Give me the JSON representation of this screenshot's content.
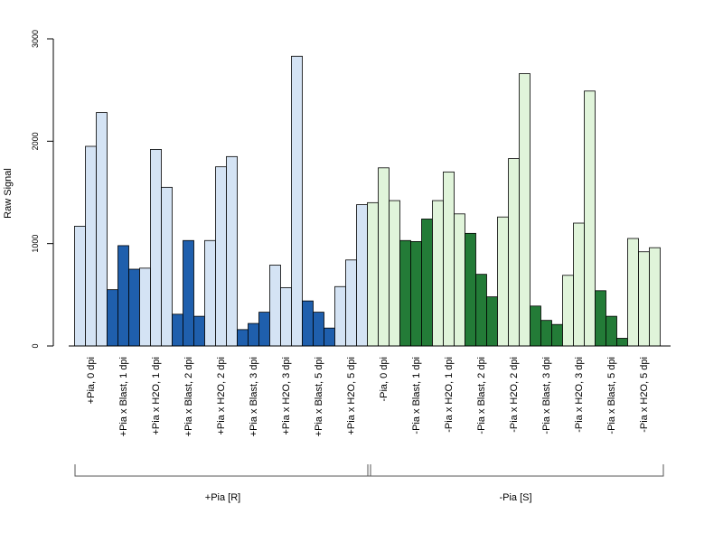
{
  "chart_data": {
    "type": "bar",
    "ylabel": "Raw Signal",
    "xlabel": "",
    "title": "",
    "ylim": [
      0,
      3000
    ],
    "yticks": [
      0,
      1000,
      2000,
      3000
    ],
    "ytick_labels": [
      "0",
      "1000",
      "2000",
      "3000"
    ],
    "grid": false,
    "categories": [
      "+Pia, 0 dpi",
      "+Pia x Blast, 1 dpi",
      "+Pia x H2O, 1 dpi",
      "+Pia x Blast, 2 dpi",
      "+Pia x H2O, 2 dpi",
      "+Pia x Blast, 3 dpi",
      "+Pia x H2O, 3 dpi",
      "+Pia x Blast, 5 dpi",
      "+Pia x H2O, 5 dpi",
      "-Pia, 0 dpi",
      "-Pia x Blast, 1 dpi",
      "-Pia x H2O, 1 dpi",
      "-Pia x Blast, 2 dpi",
      "-Pia x H2O, 2 dpi",
      "-Pia x Blast, 3 dpi",
      "-Pia x H2O, 3 dpi",
      "-Pia x Blast, 5 dpi",
      "-Pia x H2O, 5 dpi"
    ],
    "values": [
      [
        1170,
        1950,
        2280
      ],
      [
        550,
        980,
        750
      ],
      [
        760,
        1920,
        1550
      ],
      [
        310,
        1030,
        290
      ],
      [
        1030,
        1750,
        1850
      ],
      [
        160,
        220,
        330
      ],
      [
        790,
        570,
        2830
      ],
      [
        440,
        330,
        175
      ],
      [
        580,
        840,
        1380
      ],
      [
        1400,
        1740,
        1420
      ],
      [
        1030,
        1020,
        1240
      ],
      [
        1420,
        1700,
        1290
      ],
      [
        1100,
        700,
        480
      ],
      [
        1260,
        1830,
        2660
      ],
      [
        390,
        250,
        210
      ],
      [
        690,
        1200,
        2490
      ],
      [
        540,
        290,
        75
      ],
      [
        1050,
        920,
        960
      ]
    ],
    "bar_colors": [
      "#d4e3f4",
      "#1f5fad",
      "#d4e3f4",
      "#1f5fad",
      "#d4e3f4",
      "#1f5fad",
      "#d4e3f4",
      "#1f5fad",
      "#d4e3f4",
      "#e0f4da",
      "#237b37",
      "#e0f4da",
      "#237b37",
      "#e0f4da",
      "#237b37",
      "#e0f4da",
      "#237b37",
      "#e0f4da"
    ],
    "groups": [
      {
        "label": "+Pia [R]",
        "first": 0,
        "last": 8
      },
      {
        "label": "-Pia [S]",
        "first": 9,
        "last": 17
      }
    ]
  }
}
